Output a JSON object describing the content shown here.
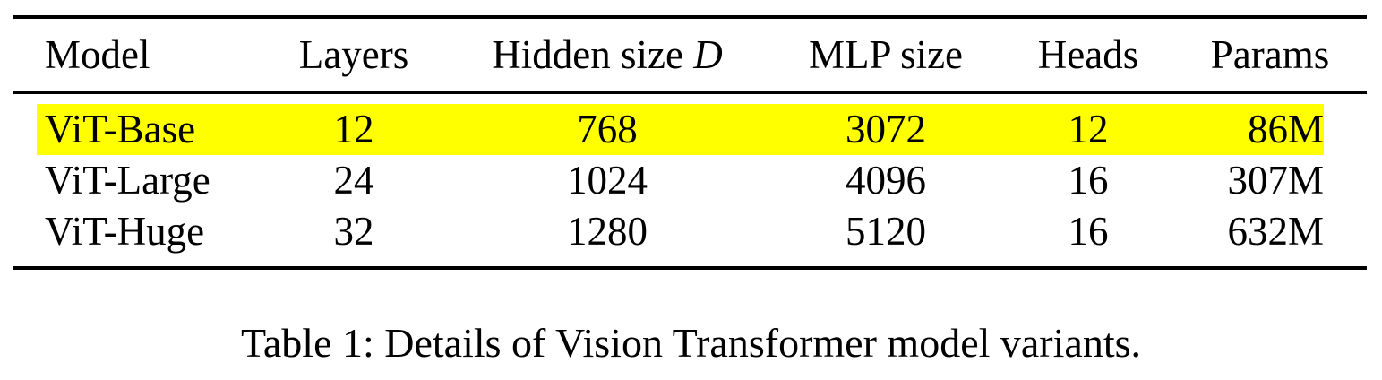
{
  "table": {
    "headers": {
      "model": "Model",
      "layers": "Layers",
      "hidden_prefix": "Hidden size",
      "hidden_symbol": "D",
      "mlp": "MLP size",
      "heads": "Heads",
      "params": "Params"
    },
    "highlight_color": "#ffff00",
    "highlighted_row": "ViT-Base",
    "rows": [
      {
        "model": "ViT-Base",
        "layers": "12",
        "hidden": "768",
        "mlp": "3072",
        "heads": "12",
        "params": "86M"
      },
      {
        "model": "ViT-Large",
        "layers": "24",
        "hidden": "1024",
        "mlp": "4096",
        "heads": "16",
        "params": "307M"
      },
      {
        "model": "ViT-Huge",
        "layers": "32",
        "hidden": "1280",
        "mlp": "5120",
        "heads": "16",
        "params": "632M"
      }
    ]
  },
  "caption": "Table 1: Details of Vision Transformer model variants."
}
